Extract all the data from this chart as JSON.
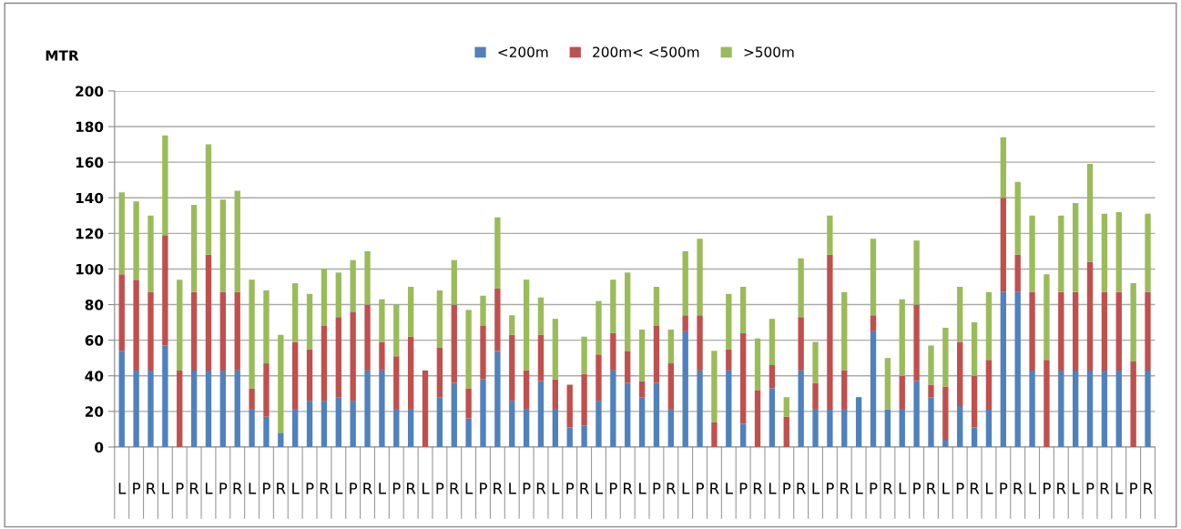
{
  "chart_data": {
    "type": "bar",
    "stacked": true,
    "ylabel": "MTR",
    "legend": "top",
    "grid": "y",
    "categories": [
      "L",
      "P",
      "R",
      "L",
      "P",
      "R",
      "L",
      "P",
      "R",
      "L",
      "P",
      "R",
      "L",
      "P",
      "R",
      "L",
      "P",
      "R",
      "L",
      "P",
      "R",
      "L",
      "P",
      "R",
      "L",
      "P",
      "R",
      "L",
      "P",
      "R",
      "L",
      "P",
      "R",
      "L",
      "P",
      "R",
      "L",
      "P",
      "R",
      "L",
      "P",
      "R",
      "L",
      "P",
      "R",
      "L",
      "P",
      "R",
      "L",
      "P",
      "R",
      "L",
      "P",
      "R",
      "L",
      "P",
      "R",
      "L",
      "P",
      "R",
      "L",
      "P",
      "R",
      "L",
      "P",
      "R",
      "L",
      "P",
      "R",
      "L",
      "P",
      "R"
    ],
    "ylim": [
      0,
      200
    ],
    "yticks": [
      0,
      20,
      40,
      60,
      80,
      100,
      120,
      140,
      160,
      180,
      200
    ],
    "series": [
      {
        "name": "<200m",
        "color": "#4f81bd",
        "values": [
          54,
          43,
          43,
          57,
          0,
          43,
          43,
          43,
          43,
          21,
          17,
          8,
          21,
          26,
          26,
          28,
          26,
          43,
          43,
          21,
          21,
          0,
          28,
          36,
          16,
          38,
          54,
          26,
          21,
          37,
          21,
          11,
          12,
          26,
          43,
          36,
          28,
          36,
          21,
          65,
          43,
          0,
          43,
          13,
          0,
          33,
          0,
          43,
          21,
          21,
          21,
          28,
          65,
          21,
          21,
          37,
          28,
          4,
          23,
          11,
          21,
          87,
          87,
          43,
          0,
          43,
          43,
          43,
          43,
          43,
          0,
          43
        ]
      },
      {
        "name": "200m< <500m",
        "color": "#c0504d",
        "values": [
          43,
          51,
          44,
          62,
          43,
          44,
          65,
          44,
          44,
          12,
          30,
          0,
          38,
          29,
          42,
          45,
          50,
          37,
          16,
          30,
          41,
          43,
          28,
          44,
          17,
          30,
          35,
          37,
          22,
          26,
          17,
          24,
          29,
          26,
          21,
          18,
          9,
          32,
          26,
          9,
          31,
          14,
          12,
          51,
          32,
          13,
          17,
          30,
          15,
          87,
          22,
          0,
          9,
          0,
          19,
          43,
          7,
          30,
          36,
          29,
          28,
          53,
          21,
          44,
          49,
          44,
          44,
          61,
          44,
          44,
          48,
          44
        ]
      },
      {
        "name": ">500m",
        "color": "#9bbb59",
        "values": [
          46,
          44,
          43,
          56,
          51,
          49,
          62,
          52,
          57,
          61,
          41,
          55,
          33,
          31,
          32,
          25,
          29,
          30,
          24,
          29,
          28,
          0,
          32,
          25,
          44,
          17,
          40,
          11,
          51,
          21,
          34,
          0,
          21,
          30,
          30,
          44,
          29,
          22,
          19,
          36,
          43,
          40,
          31,
          26,
          29,
          26,
          11,
          33,
          23,
          22,
          44,
          0,
          43,
          29,
          43,
          36,
          22,
          33,
          31,
          30,
          38,
          34,
          41,
          43,
          48,
          43,
          50,
          55,
          44,
          45,
          44,
          44
        ]
      }
    ]
  }
}
